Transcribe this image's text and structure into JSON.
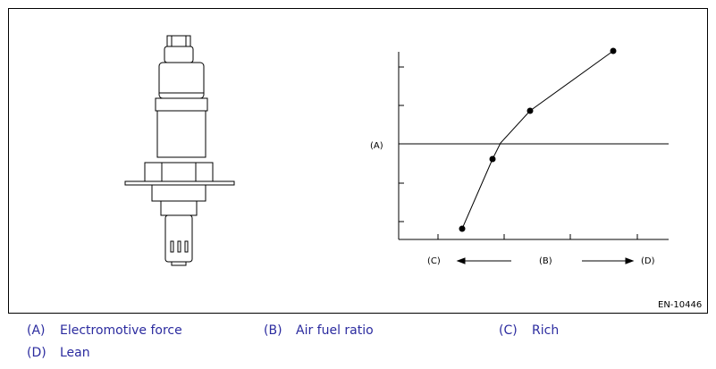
{
  "figure": {
    "labels": {
      "a": "(A)",
      "b": "(B)",
      "c": "(C)",
      "d": "(D)"
    },
    "id": "EN-10446"
  },
  "legend": [
    {
      "key": "(A)",
      "text": "Electromotive force"
    },
    {
      "key": "(B)",
      "text": "Air fuel ratio"
    },
    {
      "key": "(C)",
      "text": "Rich"
    },
    {
      "key": "(D)",
      "text": "Lean"
    }
  ]
}
